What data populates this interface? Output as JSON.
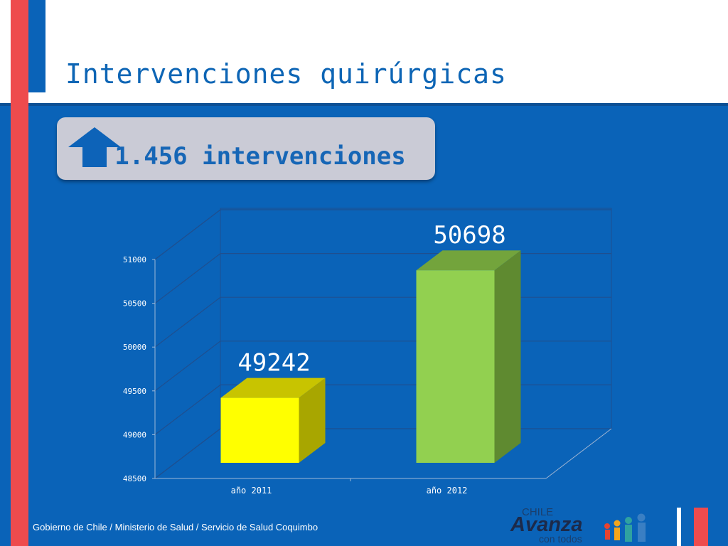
{
  "title": "Intervenciones quirúrgicas",
  "callout": {
    "text": "1.456 intervenciones",
    "icon": "up-arrow-icon"
  },
  "footer": "Gobierno de Chile / Ministerio de Salud / Servicio de Salud Coquimbo",
  "logo": {
    "line1": "CHILE",
    "line2": "Avanza",
    "line3": "con todos"
  },
  "colors": {
    "background": "#0a63b8",
    "accent_red": "#ee4b4d",
    "bar_2011": "#ffff00",
    "bar_2012": "#92d050"
  },
  "chart_data": {
    "type": "bar",
    "categories": [
      "año 2011",
      "año 2012"
    ],
    "values": [
      49242,
      50698
    ],
    "data_labels": [
      "49242",
      "50698"
    ],
    "ylim": [
      48500,
      51000
    ],
    "yticks": [
      48500,
      49000,
      49500,
      50000,
      50500,
      51000
    ],
    "ytick_labels": [
      "48500",
      "49000",
      "49500",
      "50000",
      "50500",
      "51000"
    ],
    "grid": true,
    "style": "3d",
    "title": "",
    "xlabel": "",
    "ylabel": ""
  }
}
